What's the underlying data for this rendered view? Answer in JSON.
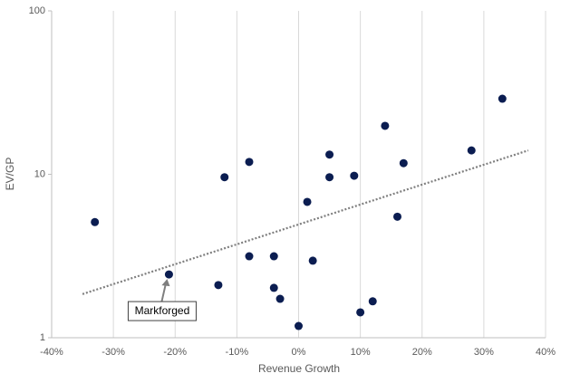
{
  "chart_data": {
    "type": "scatter",
    "x_label": "Revenue Growth",
    "y_label": "EV/GP",
    "x": [
      -33,
      -21,
      -13,
      -12,
      -8,
      -8,
      -4,
      -4,
      -3,
      0,
      1.4,
      2.3,
      5,
      5,
      9,
      10,
      12,
      14,
      16,
      17,
      28,
      33
    ],
    "y": [
      5.1,
      2.44,
      2.1,
      9.6,
      11.9,
      3.15,
      3.15,
      2.02,
      1.73,
      1.18,
      6.78,
      2.96,
      13.2,
      9.6,
      9.8,
      1.43,
      1.67,
      19.8,
      5.5,
      11.7,
      14.0,
      29.0
    ],
    "color": "#0b1d51",
    "trendline": {
      "x": [
        -35,
        37.2
      ],
      "y": [
        1.85,
        14.0
      ],
      "color": "#7f7f7f"
    },
    "annotation": "Markforged",
    "xlim": [
      -40,
      40
    ],
    "xticks": [
      {
        "value": -40,
        "label": "-40%"
      },
      {
        "value": -30,
        "label": "-30%"
      },
      {
        "value": -20,
        "label": "-20%"
      },
      {
        "value": -10,
        "label": "-10%"
      },
      {
        "value": 0,
        "label": "0%"
      },
      {
        "value": 10,
        "label": "10%"
      },
      {
        "value": 20,
        "label": "20%"
      },
      {
        "value": 30,
        "label": "30%"
      },
      {
        "value": 40,
        "label": "40%"
      }
    ],
    "ylim": [
      1,
      100
    ],
    "yticks": [
      1,
      10,
      100
    ],
    "log_y": true,
    "x_grid": true
  }
}
